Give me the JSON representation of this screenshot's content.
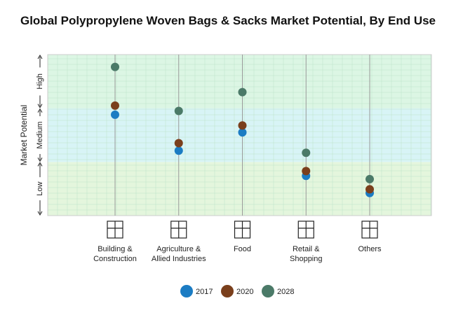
{
  "chart_data": {
    "type": "dot",
    "title": "Global Polypropylene Woven Bags & Sacks Market Potential, By End Use",
    "y_label": "Market Potential",
    "categories": [
      "Building & Construction",
      "Agriculture & Allied Industries",
      "Food",
      "Retail & Shopping",
      "Others"
    ],
    "series": [
      {
        "name": "2017",
        "color": "#1b7cc3",
        "values": [
          1.88,
          1.21,
          1.55,
          0.74,
          0.42
        ]
      },
      {
        "name": "2020",
        "color": "#7a3f1c",
        "values": [
          2.05,
          1.35,
          1.68,
          0.83,
          0.49
        ]
      },
      {
        "name": "2028",
        "color": "#4b7a68",
        "values": [
          2.77,
          1.95,
          2.3,
          1.17,
          0.68
        ]
      }
    ],
    "ylim": [
      0,
      3
    ],
    "bands": [
      {
        "label": "Low",
        "from": 0,
        "to": 1,
        "color": "#e4f6dd"
      },
      {
        "label": "Medium",
        "from": 1,
        "to": 2,
        "color": "#d8f4f6"
      },
      {
        "label": "High",
        "from": 2,
        "to": 3,
        "color": "#dcf6e4"
      }
    ],
    "grid": true
  }
}
